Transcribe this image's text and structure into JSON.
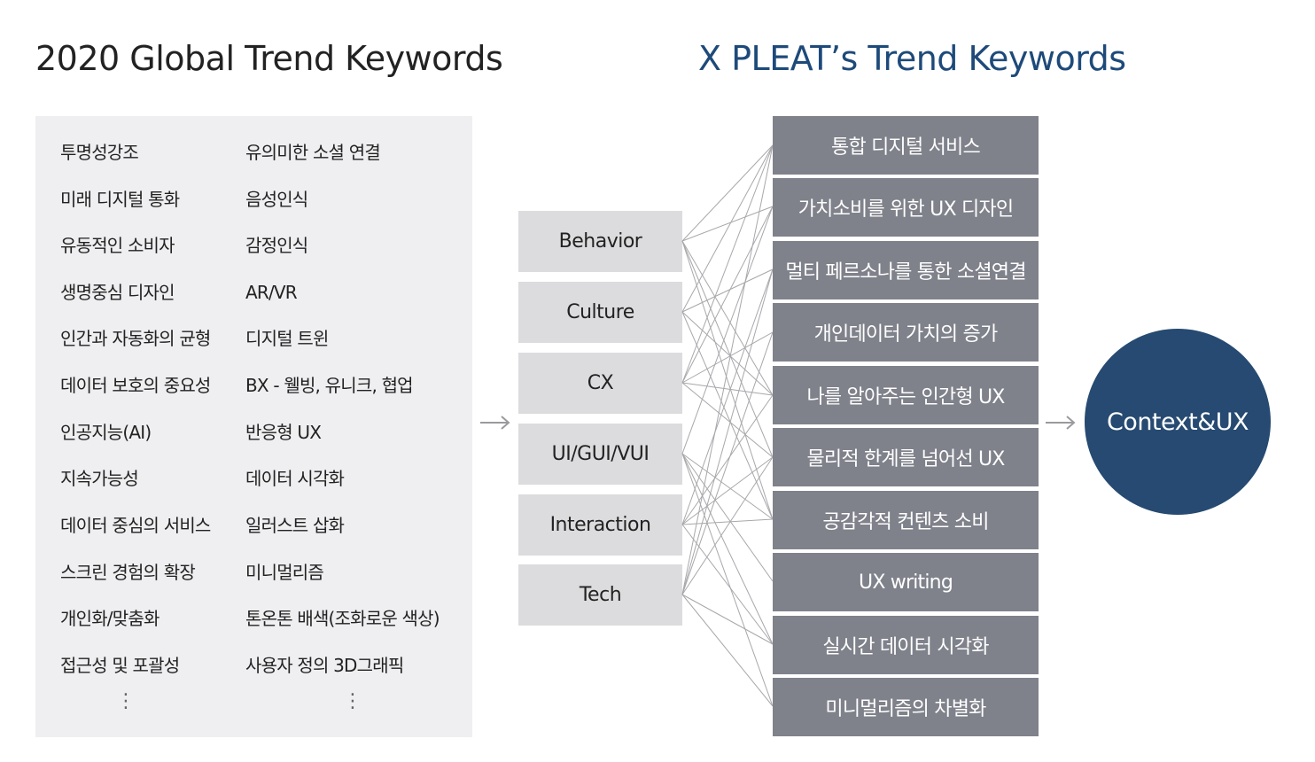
{
  "left_title": "2020 Global Trend Keywords",
  "right_title": "X PLEAT’s Trend Keywords",
  "global_keywords": {
    "col1": [
      "투명성강조",
      "미래 디지털 통화",
      "유동적인 소비자",
      "생명중심 디자인",
      "인간과 자동화의 균형",
      "데이터 보호의 중요성",
      "인공지능(AI)",
      "지속가능성",
      "데이터 중심의 서비스",
      "스크린 경험의 확장",
      "개인화/맞춤화",
      "접근성 및 포괄성"
    ],
    "col2": [
      "유의미한 소셜 연결",
      "음성인식",
      "감정인식",
      "AR/VR",
      "디지털 트윈",
      "BX - 웰빙, 유니크, 협업",
      "반응형 UX",
      "데이터 시각화",
      "일러스트 삽화",
      "미니멀리즘",
      "톤온톤 배색(조화로운 색상)",
      "사용자 정의 3D그래픽"
    ],
    "ellipsis": "⋮"
  },
  "categories": [
    "Behavior",
    "Culture",
    "CX",
    "UI/GUI/VUI",
    "Interaction",
    "Tech"
  ],
  "xpleat_keywords": [
    "통합 디지털 서비스",
    "가치소비를 위한 UX 디자인",
    "멀티 페르소나를 통한 소셜연결",
    "개인데이터 가치의 증가",
    "나를 알아주는 인간형 UX",
    "물리적 한계를 넘어선 UX",
    "공감각적 컨텐츠 소비",
    "UX writing",
    "실시간 데이터 시각화",
    "미니멀리즘의 차별화"
  ],
  "result": "Context&UX",
  "colors": {
    "left_title": "#222222",
    "right_title": "#1e4a7a",
    "panel_bg": "#efeff1",
    "category_bg": "#dcdcde",
    "keyword_bg": "#7f828b",
    "circle_bg": "#264a71",
    "link_line": "#a8a8ac",
    "arrow": "#9a9a9e"
  }
}
